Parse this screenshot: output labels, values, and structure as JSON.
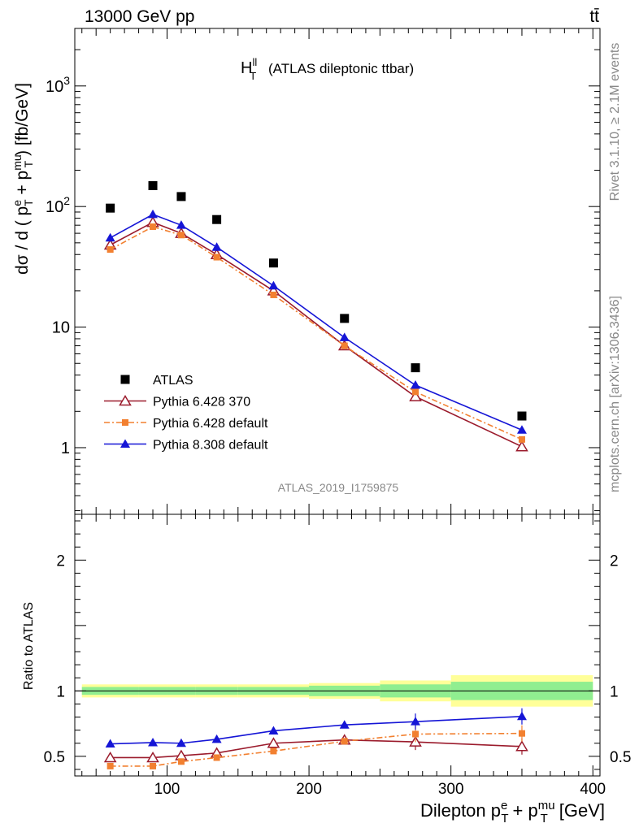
{
  "header": {
    "left": "13000 GeV pp",
    "right": "tt̄"
  },
  "side_labels": {
    "rivet": "Rivet 3.1.10, ≥ 2.1M events",
    "mcplots": "mcplots.cern.ch [arXiv:1306.3436]"
  },
  "chart_data": [
    {
      "panel": "main",
      "type": "scatter",
      "title": "H_T^ll (ATLAS dileptonic ttbar)",
      "title_main": "H",
      "title_sup": "ll",
      "title_sub": "T",
      "title_rest": "(ATLAS dileptonic ttbar)",
      "analysis_label": "ATLAS_2019_I1759875",
      "ylabel": "dσ / d ( p_T^e + p_T^mu ) [fb/GeV]",
      "yscale": "log",
      "ylim": [
        0.28,
        3000
      ],
      "xlim": [
        35,
        405
      ],
      "y_tick_labels": [
        {
          "value": 1,
          "label": "1"
        },
        {
          "value": 10,
          "label": "10"
        },
        {
          "value": 100,
          "label": "10",
          "sup": "2"
        },
        {
          "value": 1000,
          "label": "10",
          "sup": "3"
        }
      ],
      "legend_position": "lower-left",
      "x": [
        60,
        90,
        110,
        135,
        175,
        225,
        275,
        350
      ],
      "bin_edges": [
        40,
        80,
        100,
        120,
        150,
        200,
        250,
        300,
        400
      ],
      "series": [
        {
          "name": "ATLAS",
          "marker": "filled-square",
          "line": "none",
          "color": "#000000",
          "values": [
            97,
            149,
            121,
            78,
            34,
            11.8,
            4.6,
            1.83
          ]
        },
        {
          "name": "Pythia 6.428 370",
          "marker": "open-triangle",
          "line": "solid",
          "color": "#9b1b2c",
          "values": [
            48,
            74,
            60,
            40,
            20,
            7.0,
            2.65,
            1.02
          ]
        },
        {
          "name": "Pythia 6.428 default",
          "marker": "filled-small-square",
          "line": "dash-dot",
          "color": "#f28030",
          "values": [
            44,
            68,
            58,
            38,
            18.5,
            7.0,
            2.9,
            1.17
          ]
        },
        {
          "name": "Pythia 8.308 default",
          "marker": "filled-triangle",
          "line": "solid",
          "color": "#1515d6",
          "values": [
            55,
            86,
            70,
            46,
            22,
            8.2,
            3.3,
            1.4
          ]
        }
      ]
    },
    {
      "panel": "ratio",
      "type": "line",
      "ylabel": "Ratio to ATLAS",
      "xlabel": "Dilepton p_T^e + p_T^mu [GeV]",
      "xlabel_main": "Dilepton p",
      "xlabel_sup1": "e",
      "xlabel_sub1": "T",
      "xlabel_plus": "+ p",
      "xlabel_sup2": "mu",
      "xlabel_sub2": "T",
      "xlabel_unit": "[GeV]",
      "ylim": [
        0.35,
        2.35
      ],
      "xlim": [
        35,
        405
      ],
      "x_ticks": [
        100,
        200,
        300,
        400
      ],
      "y_ticks": [
        0.5,
        1,
        2
      ],
      "x_tick_labels": [
        "100",
        "200",
        "300",
        "400"
      ],
      "y_tick_labels": [
        "0.5",
        "1",
        "2"
      ],
      "x": [
        60,
        90,
        110,
        135,
        175,
        225,
        275,
        350
      ],
      "bin_edges": [
        40,
        80,
        100,
        120,
        150,
        200,
        250,
        300,
        400
      ],
      "band_inner": [
        0.03,
        0.03,
        0.03,
        0.03,
        0.03,
        0.04,
        0.05,
        0.07
      ],
      "band_outer": [
        0.05,
        0.05,
        0.05,
        0.05,
        0.05,
        0.06,
        0.08,
        0.12
      ],
      "series": [
        {
          "name": "Pythia 6.428 370",
          "color": "#9b1b2c",
          "values": [
            0.49,
            0.49,
            0.505,
            0.525,
            0.6,
            0.625,
            0.61,
            0.575
          ]
        },
        {
          "name": "Pythia 6.428 default",
          "color": "#f28030",
          "values": [
            0.425,
            0.425,
            0.46,
            0.49,
            0.54,
            0.615,
            0.67,
            0.675
          ]
        },
        {
          "name": "Pythia 8.308 default",
          "color": "#1515d6",
          "values": [
            0.595,
            0.605,
            0.6,
            0.63,
            0.695,
            0.74,
            0.765,
            0.805
          ]
        }
      ]
    }
  ],
  "colors": {
    "band_inner": "#90ee90",
    "band_outer": "#ffff99",
    "reference_line": "#000000"
  }
}
